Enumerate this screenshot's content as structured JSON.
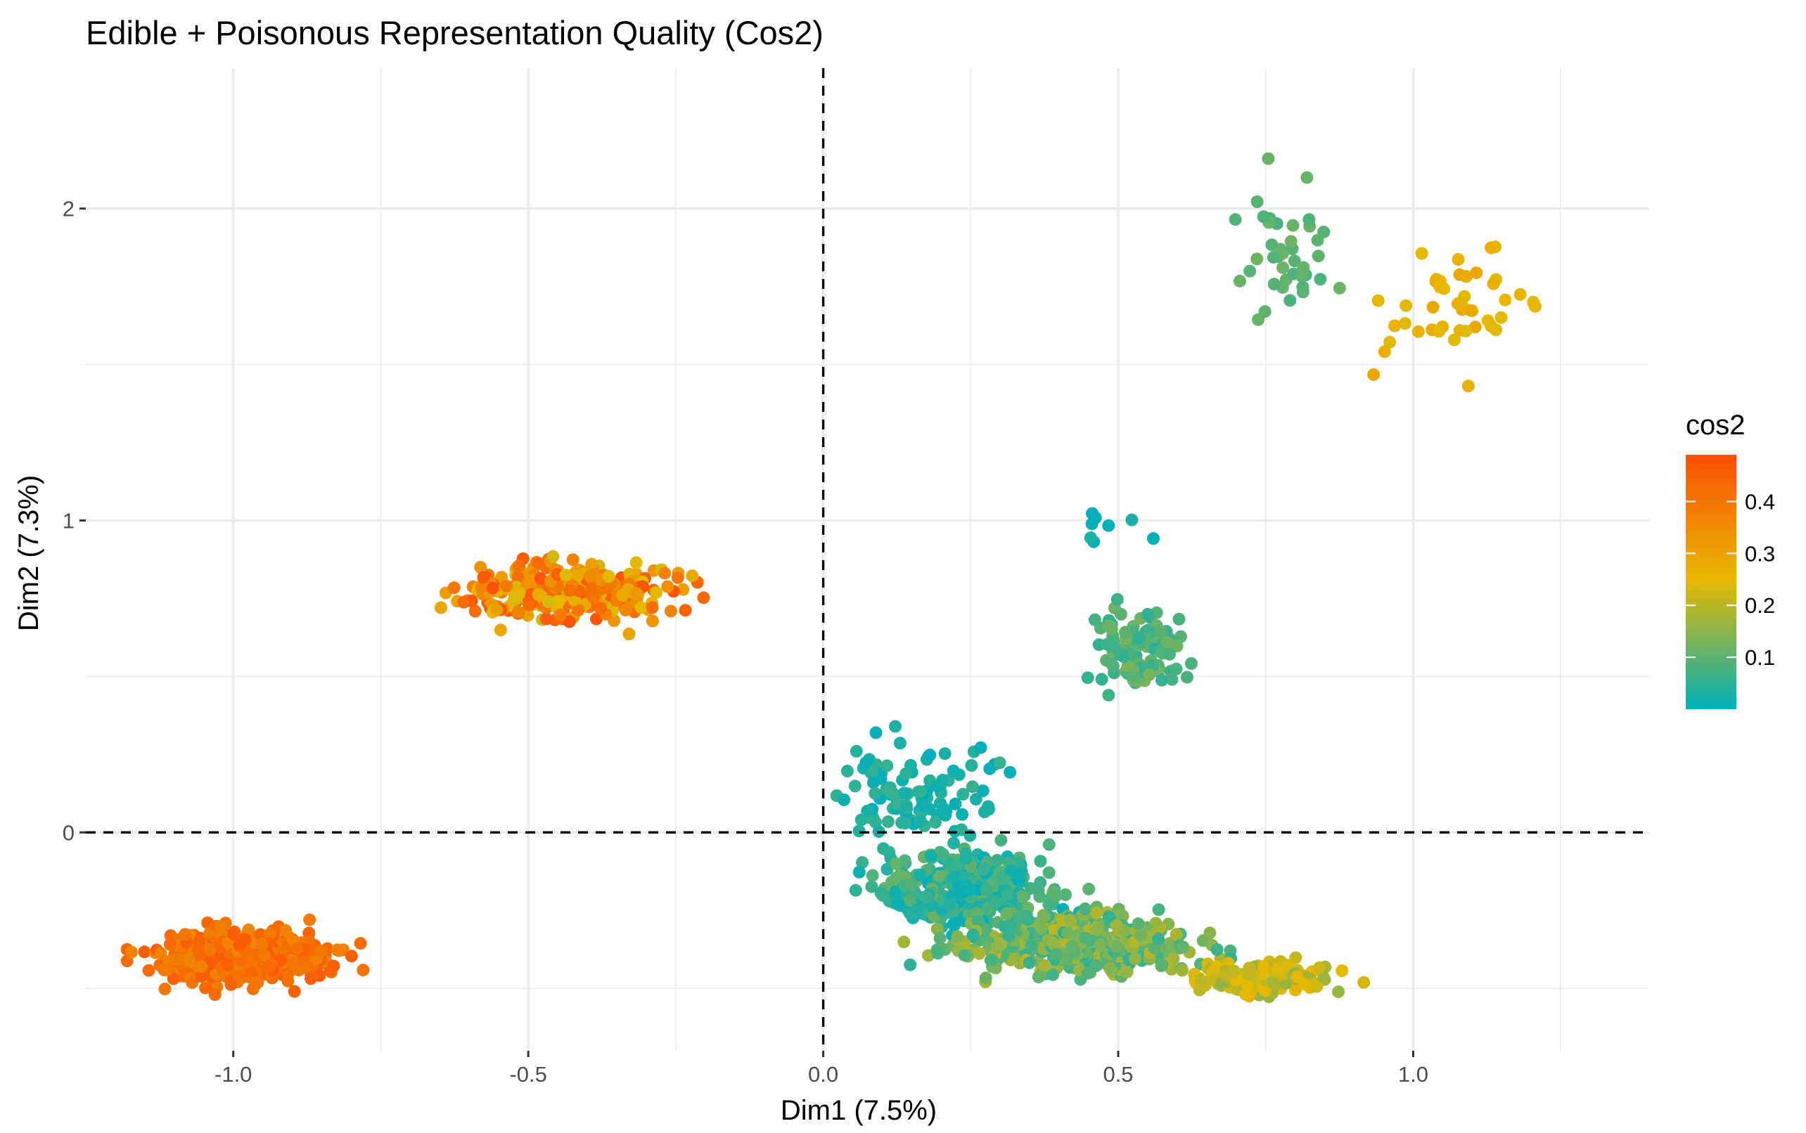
{
  "chart_data": {
    "type": "scatter",
    "title": "Edible + Poisonous Representation Quality (Cos2)",
    "xlabel": "Dim1 (7.5%)",
    "ylabel": "Dim2 (7.3%)",
    "xlim": [
      -1.25,
      1.4
    ],
    "ylim": [
      -0.7,
      2.45
    ],
    "x_ticks": [
      -1.0,
      -0.5,
      0.0,
      0.5,
      1.0
    ],
    "x_tick_labels": [
      "-1.0",
      "-0.5",
      "0.0",
      "0.5",
      "1.0"
    ],
    "y_ticks": [
      0,
      1,
      2
    ],
    "y_tick_labels": [
      "0",
      "1",
      "2"
    ],
    "grid": true,
    "reference_lines": {
      "x": 0,
      "y": 0,
      "style": "dashed"
    },
    "color_variable": "cos2",
    "color_scale": {
      "low_color": "#00AFBB",
      "mid_color": "#E7B800",
      "high_color": "#FC4E07",
      "min": 0.0,
      "midpoint": 0.25,
      "max": 0.49,
      "ticks": [
        0.1,
        0.2,
        0.3,
        0.4
      ],
      "tick_labels": [
        "0.1",
        "0.2",
        "0.3",
        "0.4"
      ]
    },
    "legend": {
      "title": "cos2",
      "placement": "right"
    },
    "clusters": [
      {
        "center": [
          -0.98,
          -0.4
        ],
        "spread": [
          0.2,
          0.12
        ],
        "count": 520,
        "cos2": [
          0.36,
          0.46
        ]
      },
      {
        "center": [
          -0.43,
          0.77
        ],
        "spread": [
          0.27,
          0.14
        ],
        "count": 320,
        "cos2": [
          0.22,
          0.48
        ]
      },
      {
        "center": [
          0.16,
          0.12
        ],
        "spread": [
          0.19,
          0.24
        ],
        "count": 110,
        "cos2": [
          0.0,
          0.06
        ]
      },
      {
        "center": [
          0.25,
          -0.18
        ],
        "spread": [
          0.2,
          0.17
        ],
        "count": 380,
        "cos2": [
          0.0,
          0.12
        ]
      },
      {
        "center": [
          0.42,
          -0.36
        ],
        "spread": [
          0.3,
          0.14
        ],
        "count": 420,
        "cos2": [
          0.05,
          0.2
        ]
      },
      {
        "center": [
          0.74,
          -0.47
        ],
        "spread": [
          0.2,
          0.07
        ],
        "count": 140,
        "cos2": [
          0.16,
          0.27
        ]
      },
      {
        "center": [
          0.54,
          0.58
        ],
        "spread": [
          0.1,
          0.18
        ],
        "count": 120,
        "cos2": [
          0.05,
          0.13
        ]
      },
      {
        "center": [
          0.48,
          0.95
        ],
        "spread": [
          0.08,
          0.14
        ],
        "count": 8,
        "cos2": [
          0.0,
          0.03
        ]
      },
      {
        "center": [
          0.8,
          1.88
        ],
        "spread": [
          0.14,
          0.28
        ],
        "count": 40,
        "cos2": [
          0.08,
          0.12
        ]
      },
      {
        "center": [
          1.06,
          1.67
        ],
        "spread": [
          0.17,
          0.32
        ],
        "count": 45,
        "cos2": [
          0.24,
          0.29
        ]
      }
    ]
  }
}
